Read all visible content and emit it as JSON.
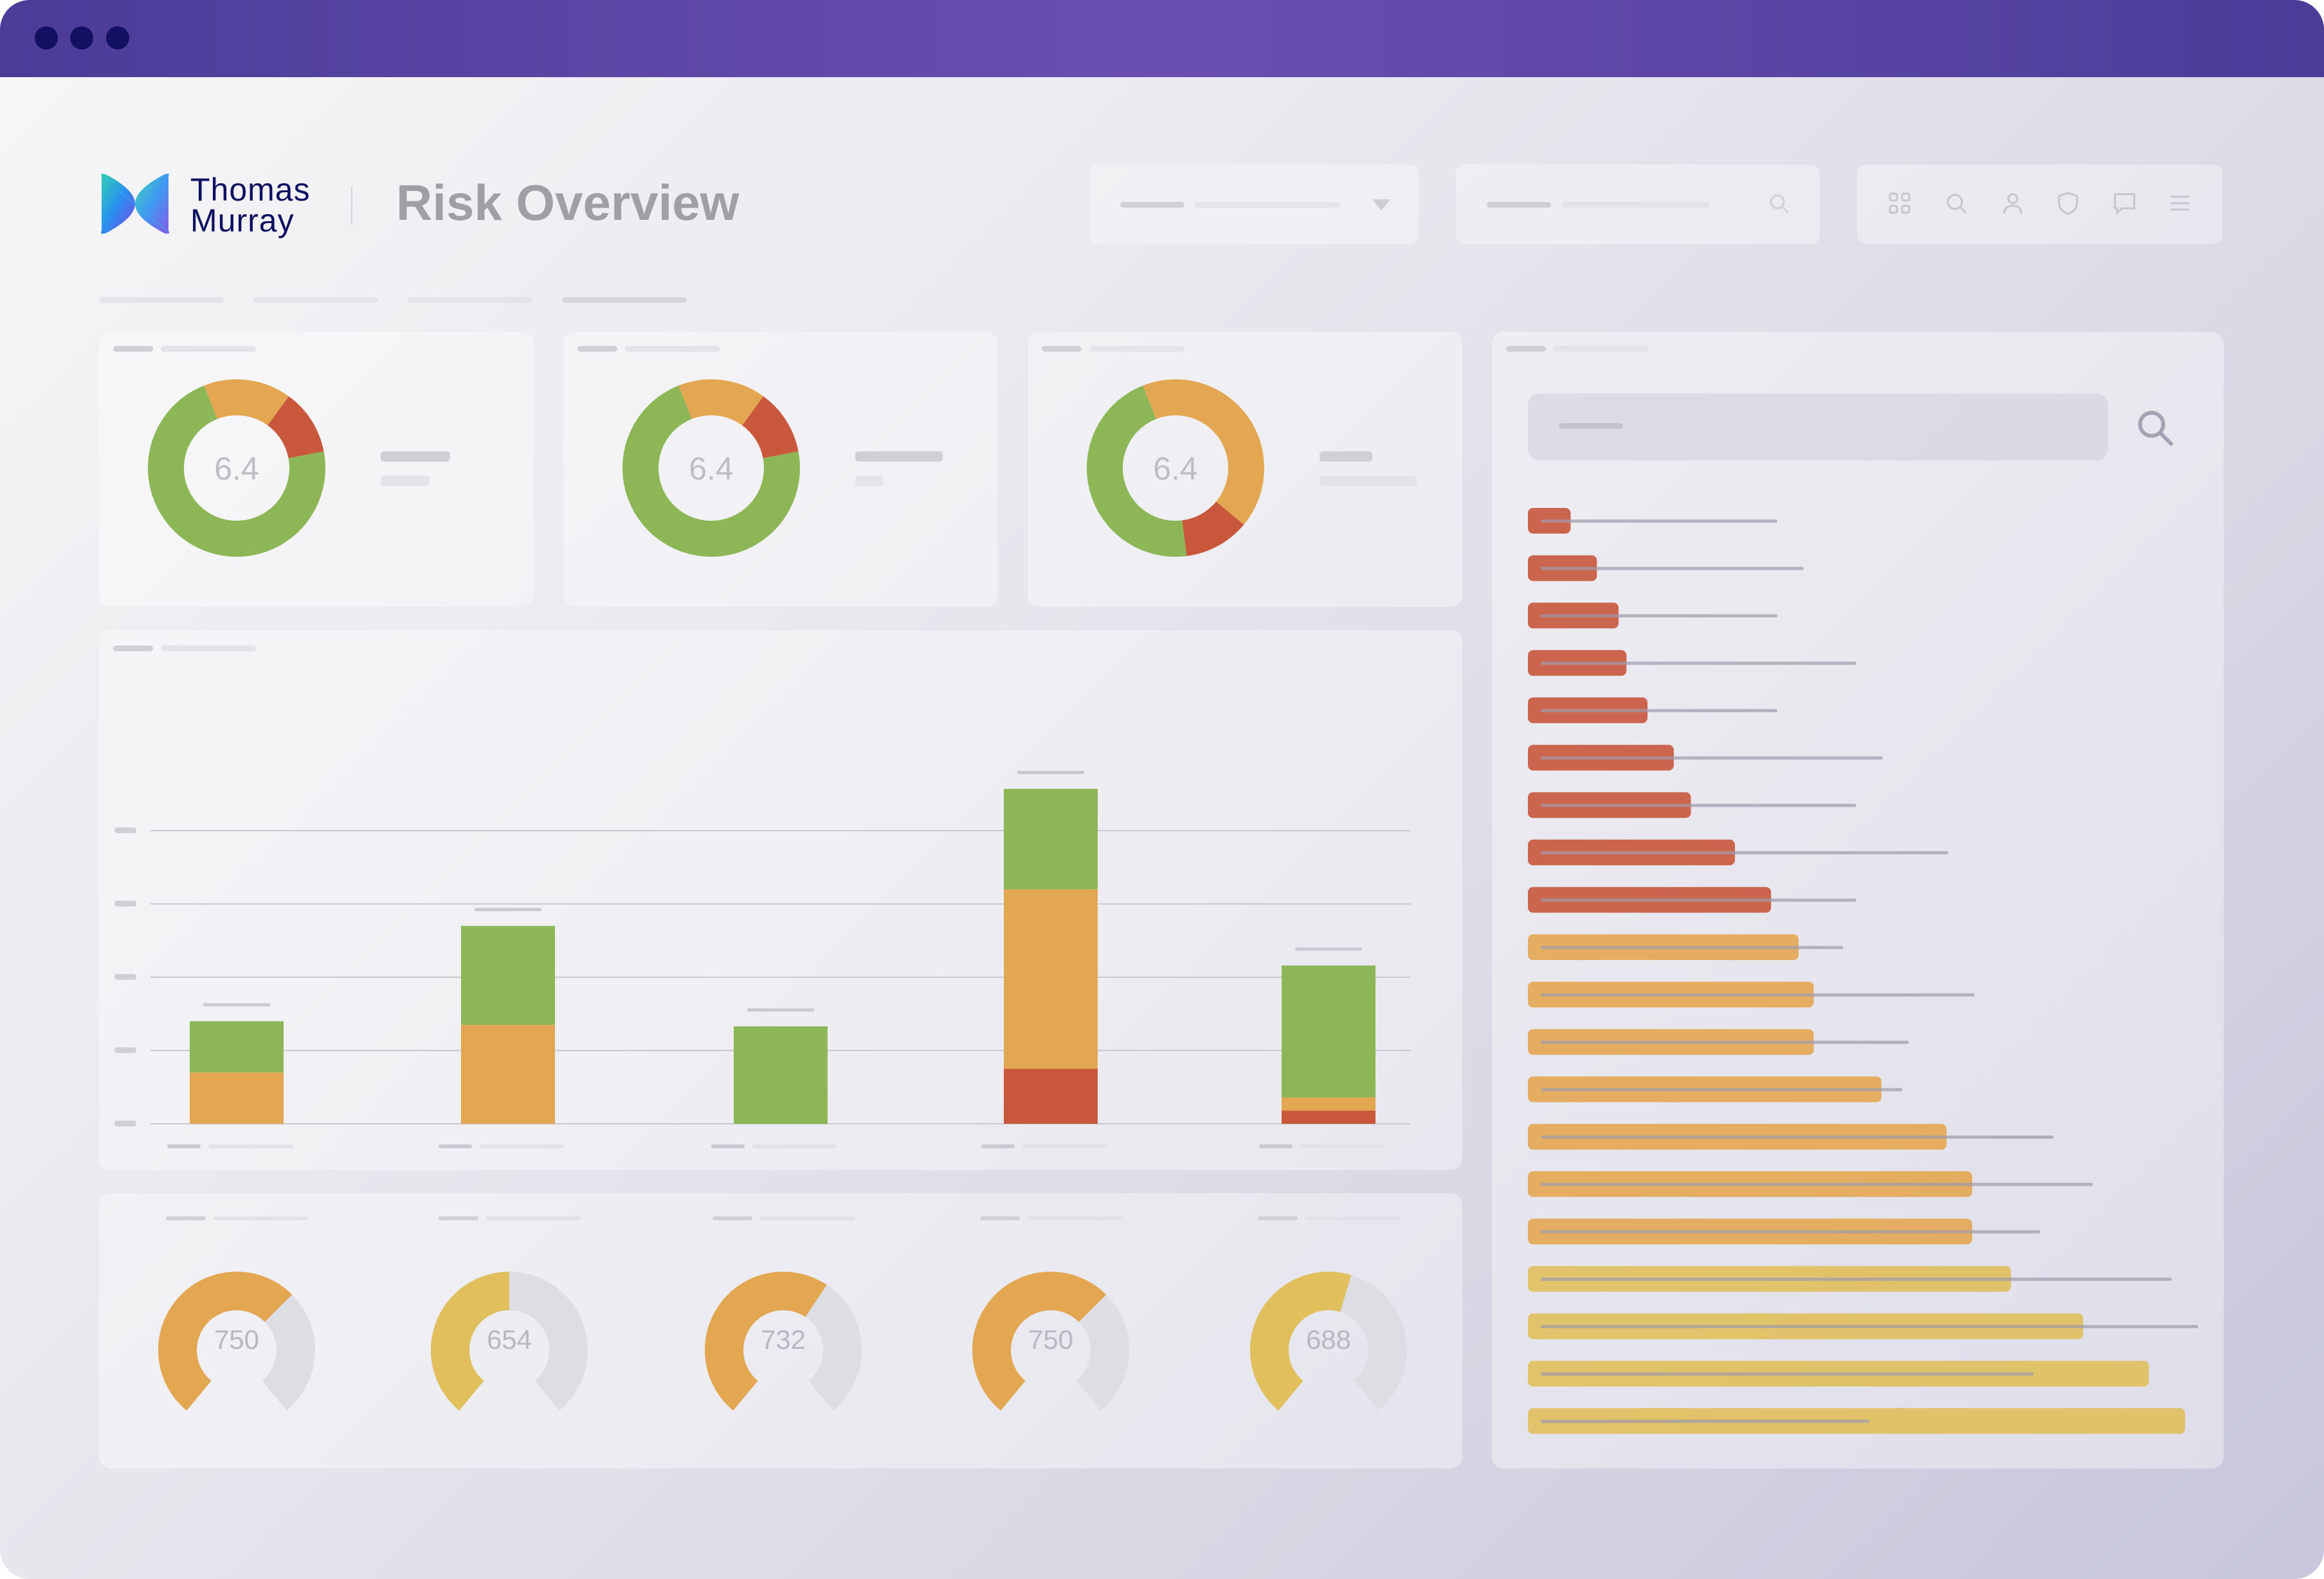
{
  "brand": {
    "name_line1": "Thomas",
    "name_line2": "Murray",
    "logo_icon": "thomas-murray-logo-icon"
  },
  "page": {
    "title": "Risk Overview"
  },
  "toolbar": {
    "icons": [
      "grid-icon",
      "search-icon",
      "user-icon",
      "shield-icon",
      "chat-icon",
      "menu-icon"
    ]
  },
  "colors": {
    "red": "#c9573b",
    "orange": "#e3a651",
    "green": "#8db657",
    "yellow": "#e0bf5c",
    "accent": "#5c45a6",
    "brand_navy": "#0e1161"
  },
  "donuts": [
    {
      "value": "6.4",
      "segments": [
        {
          "color": "green",
          "fraction": 0.72
        },
        {
          "color": "orange",
          "fraction": 0.16
        },
        {
          "color": "red",
          "fraction": 0.12
        }
      ]
    },
    {
      "value": "6.4",
      "segments": [
        {
          "color": "green",
          "fraction": 0.72
        },
        {
          "color": "orange",
          "fraction": 0.16
        },
        {
          "color": "red",
          "fraction": 0.12
        }
      ]
    },
    {
      "value": "6.4",
      "segments": [
        {
          "color": "green",
          "fraction": 0.46
        },
        {
          "color": "orange",
          "fraction": 0.42
        },
        {
          "color": "red",
          "fraction": 0.12
        }
      ]
    }
  ],
  "gauges": [
    {
      "value": "750",
      "fill": 0.66,
      "color": "orange"
    },
    {
      "value": "654",
      "fill": 0.5,
      "color": "yellow"
    },
    {
      "value": "732",
      "fill": 0.62,
      "color": "orange"
    },
    {
      "value": "750",
      "fill": 0.66,
      "color": "orange"
    },
    {
      "value": "688",
      "fill": 0.56,
      "color": "yellow"
    }
  ],
  "chart_data": {
    "type": "bar",
    "stacked": true,
    "grid": true,
    "ylim": [
      0,
      5
    ],
    "categories": [
      "",
      "",
      "",
      "",
      ""
    ],
    "series": [
      {
        "color": "red",
        "values": [
          0,
          0,
          0,
          0.75,
          0.18
        ]
      },
      {
        "color": "orange",
        "values": [
          0.7,
          1.35,
          0,
          2.45,
          0.18
        ]
      },
      {
        "color": "green",
        "values": [
          0.7,
          1.35,
          1.33,
          1.37,
          1.8
        ]
      }
    ]
  },
  "risk_list": {
    "search_icon": "search-icon",
    "bars": [
      {
        "value": 0.065,
        "color": "red"
      },
      {
        "value": 0.105,
        "color": "red"
      },
      {
        "value": 0.138,
        "color": "red"
      },
      {
        "value": 0.15,
        "color": "red"
      },
      {
        "value": 0.182,
        "color": "red"
      },
      {
        "value": 0.222,
        "color": "red"
      },
      {
        "value": 0.248,
        "color": "red"
      },
      {
        "value": 0.315,
        "color": "red"
      },
      {
        "value": 0.37,
        "color": "red"
      },
      {
        "value": 0.412,
        "color": "orange"
      },
      {
        "value": 0.435,
        "color": "orange"
      },
      {
        "value": 0.435,
        "color": "orange"
      },
      {
        "value": 0.538,
        "color": "orange"
      },
      {
        "value": 0.637,
        "color": "orange"
      },
      {
        "value": 0.676,
        "color": "orange"
      },
      {
        "value": 0.676,
        "color": "orange"
      },
      {
        "value": 0.735,
        "color": "yellow"
      },
      {
        "value": 0.845,
        "color": "yellow"
      },
      {
        "value": 0.945,
        "color": "yellow"
      },
      {
        "value": 1.0,
        "color": "yellow"
      }
    ]
  }
}
